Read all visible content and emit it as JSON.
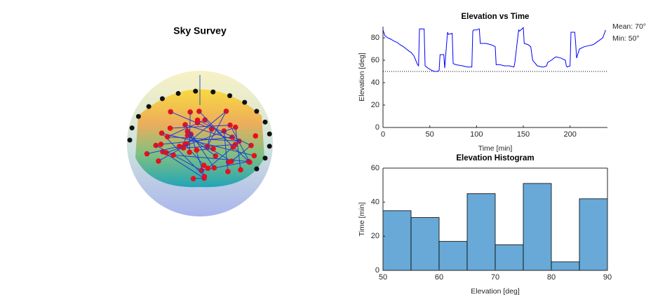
{
  "chart_data": [
    {
      "type": "sphere",
      "title": "Sky Survey"
    },
    {
      "type": "line",
      "title": "Elevation vs Time",
      "xlabel": "Time [min]",
      "ylabel": "Elevation [deg]",
      "x": [
        0,
        2,
        5,
        8,
        12,
        15,
        18,
        22,
        25,
        28,
        30,
        33,
        35,
        37,
        38,
        39,
        44,
        45,
        48,
        52,
        55,
        58,
        60,
        61,
        65,
        66,
        67,
        69,
        70,
        74,
        75,
        78,
        85,
        90,
        95,
        96,
        97,
        100,
        103,
        104,
        110,
        115,
        118,
        120,
        121,
        125,
        130,
        135,
        140,
        141,
        145,
        146,
        150,
        151,
        155,
        158,
        160,
        165,
        170,
        172,
        175,
        176,
        180,
        183,
        185,
        190,
        195,
        196,
        197,
        200,
        201,
        205,
        206,
        207,
        210,
        215,
        220,
        225,
        230,
        235,
        238
      ],
      "y": [
        87,
        82,
        80,
        79,
        77,
        76,
        74,
        72,
        70,
        68,
        67,
        64,
        60,
        56,
        55,
        88,
        88,
        55,
        53,
        51,
        50,
        50,
        51,
        65,
        65,
        53,
        64,
        85,
        83,
        84,
        57,
        56,
        55,
        54,
        54,
        86,
        87,
        87,
        88,
        75,
        75,
        74,
        73,
        72,
        56,
        56,
        55,
        55,
        54,
        58,
        87,
        86,
        89,
        75,
        74,
        72,
        60,
        55,
        54,
        54,
        55,
        58,
        60,
        62,
        63,
        62,
        60,
        55,
        54,
        55,
        85,
        85,
        75,
        62,
        70,
        72,
        73,
        74,
        77,
        80,
        87
      ],
      "color": "#0000ff",
      "hline": 50,
      "annotations": [
        "Mean: 70°",
        "Min: 50°"
      ],
      "xlim": [
        0,
        240
      ],
      "xticks": [
        0,
        50,
        100,
        150,
        200
      ],
      "ylim": [
        0,
        90
      ],
      "yticks": [
        0,
        20,
        40,
        60,
        80
      ],
      "box": false
    },
    {
      "type": "histogram",
      "title": "Elevation Histogram",
      "xlabel": "Elevation [deg]",
      "ylabel": "Time [min]",
      "bins": [
        50,
        55,
        60,
        65,
        70,
        75,
        80,
        85,
        90
      ],
      "counts": [
        35,
        31,
        17,
        45,
        15,
        51,
        5,
        42
      ],
      "color": "#68a9d7",
      "xlim": [
        50,
        90
      ],
      "xticks": [
        50,
        60,
        70,
        80,
        90
      ],
      "ylim": [
        0,
        60
      ],
      "yticks": [
        0,
        20,
        40,
        60
      ],
      "box": true
    }
  ]
}
